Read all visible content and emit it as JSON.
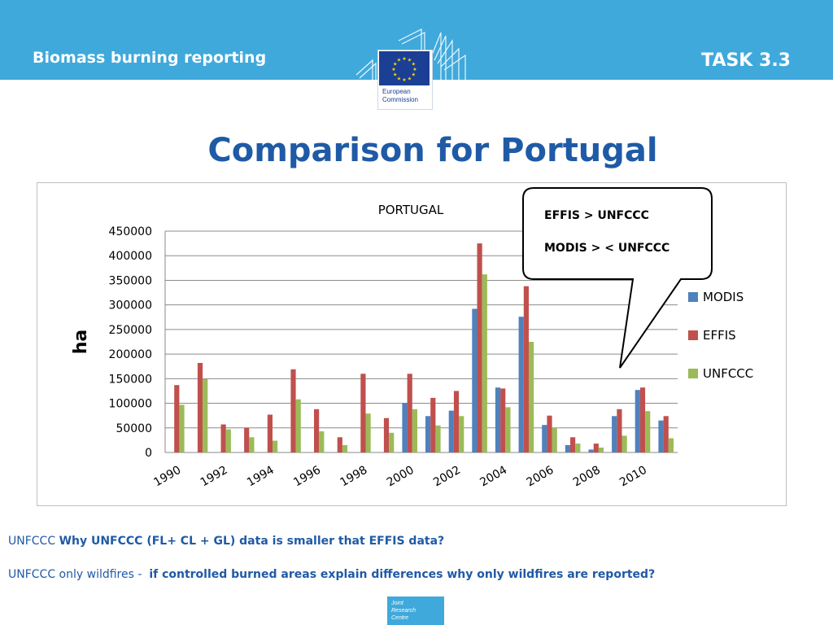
{
  "header": {
    "left_title": "Biomass burning reporting",
    "right_title": "TASK 3.3",
    "logo_text_line1": "European",
    "logo_text_line2": "Commission"
  },
  "slide_title": "Comparison for Portugal",
  "callout": {
    "line1": "EFFIS  > UNFCCC",
    "line2": "MODIS > < UNFCCC"
  },
  "chart_data": {
    "type": "bar",
    "title": "PORTUGAL",
    "ylabel": "ha",
    "xlabel": "",
    "ylim": [
      0,
      450000
    ],
    "yticks": [
      0,
      50000,
      100000,
      150000,
      200000,
      250000,
      300000,
      350000,
      400000,
      450000
    ],
    "categories": [
      "1990",
      "1991",
      "1992",
      "1993",
      "1994",
      "1995",
      "1996",
      "1997",
      "1998",
      "1999",
      "2000",
      "2001",
      "2002",
      "2003",
      "2004",
      "2005",
      "2006",
      "2007",
      "2008",
      "2009",
      "2010",
      "2011"
    ],
    "tick_labels": [
      "1990",
      "1992",
      "1994",
      "1996",
      "1998",
      "2000",
      "2002",
      "2004",
      "2006",
      "2008",
      "2010"
    ],
    "legend_position": "right",
    "grid": true,
    "series": [
      {
        "name": "MODIS",
        "color": "#4f81bd",
        "values": [
          0,
          0,
          0,
          0,
          0,
          0,
          0,
          0,
          0,
          0,
          101000,
          74000,
          85000,
          292000,
          132000,
          276000,
          56000,
          15000,
          6000,
          74000,
          127000,
          65000
        ]
      },
      {
        "name": "EFFIS",
        "color": "#c0504d",
        "values": [
          137000,
          182000,
          57000,
          50000,
          77000,
          169000,
          88000,
          31000,
          160000,
          70000,
          160000,
          111000,
          125000,
          425000,
          130000,
          338000,
          75000,
          31000,
          18000,
          88000,
          132000,
          74000
        ]
      },
      {
        "name": "UNFCCC",
        "color": "#9bbb59",
        "values": [
          97000,
          149000,
          47000,
          31000,
          24000,
          108000,
          43000,
          15000,
          79000,
          40000,
          88000,
          55000,
          74000,
          362000,
          92000,
          225000,
          50000,
          18000,
          10000,
          34000,
          84000,
          29000
        ]
      }
    ]
  },
  "notes": {
    "q1_prefix": "UNFCCC ",
    "q1_bold": "Why UNFCCC (FL+ CL + GL) data is smaller that EFFIS data?",
    "q2_prefix": "UNFCCC only wildfires -  ",
    "q2_bold": "if controlled burned areas explain differences why only wildfires are reported?"
  },
  "footer": {
    "jrc_line1": "Joint",
    "jrc_line2": "Research",
    "jrc_line3": "Centre"
  }
}
